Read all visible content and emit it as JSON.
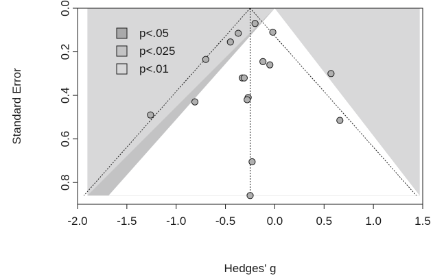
{
  "chart_data": {
    "type": "scatter",
    "subtype": "contour-enhanced funnel plot",
    "xlabel": "Hedges' g",
    "ylabel": "Standard Error",
    "xlim": [
      -2.0,
      1.5
    ],
    "ylim": [
      0.9,
      0.0
    ],
    "y_axis_reversed": true,
    "x_ticks": [
      -2.0,
      -1.5,
      -1.0,
      -0.5,
      0.0,
      0.5,
      1.0,
      1.5
    ],
    "x_tick_labels": [
      "-2.0",
      "-1.5",
      "-1.0",
      "-0.5",
      "0.0",
      "0.5",
      "1.0",
      "1.5"
    ],
    "y_ticks": [
      0.0,
      0.2,
      0.4,
      0.6,
      0.8
    ],
    "y_tick_labels": [
      "0.0",
      "0.2",
      "0.4",
      "0.6",
      "0.8"
    ],
    "summary_estimate": -0.25,
    "plotted_se_max": 0.86,
    "contours": [
      {
        "label": "p<.05",
        "alpha": 0.05,
        "z": 1.96,
        "color": "#a9a9aa"
      },
      {
        "label": "p<.025",
        "alpha": 0.025,
        "z": 2.24,
        "color": "#c3c3c4"
      },
      {
        "label": "p<.01",
        "alpha": 0.01,
        "z": 2.576,
        "color": "#d8d8d9"
      }
    ],
    "points": [
      {
        "x": -0.2,
        "y": 0.07
      },
      {
        "x": -0.02,
        "y": 0.11
      },
      {
        "x": -0.37,
        "y": 0.115
      },
      {
        "x": -0.45,
        "y": 0.155
      },
      {
        "x": -0.7,
        "y": 0.235
      },
      {
        "x": -0.12,
        "y": 0.245
      },
      {
        "x": -0.05,
        "y": 0.26
      },
      {
        "x": 0.57,
        "y": 0.3
      },
      {
        "x": -0.33,
        "y": 0.32
      },
      {
        "x": -0.31,
        "y": 0.32
      },
      {
        "x": -0.27,
        "y": 0.41
      },
      {
        "x": -0.28,
        "y": 0.42
      },
      {
        "x": -0.81,
        "y": 0.43
      },
      {
        "x": -1.26,
        "y": 0.49
      },
      {
        "x": 0.66,
        "y": 0.515
      },
      {
        "x": -0.23,
        "y": 0.705
      },
      {
        "x": -0.25,
        "y": 0.86
      }
    ],
    "legend": {
      "position": "top-left",
      "entries": [
        "p<.05",
        "p<.025",
        "p<.01"
      ]
    },
    "colors": {
      "background": "#d8d8d9",
      "inner": "#ffffff",
      "point_fill": "#b0b0b0",
      "point_stroke": "#1a1a1a"
    }
  }
}
